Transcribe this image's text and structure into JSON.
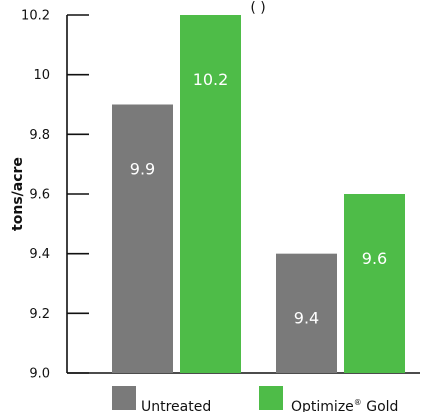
{
  "chart_data": {
    "type": "bar",
    "title_fragment": "(     )",
    "ylabel": "tons/acre",
    "ylim": [
      9.0,
      10.2
    ],
    "yticks": [
      {
        "value": 9.0,
        "label": "9.0"
      },
      {
        "value": 9.2,
        "label": "9.2"
      },
      {
        "value": 9.4,
        "label": "9.4"
      },
      {
        "value": 9.6,
        "label": "9.6"
      },
      {
        "value": 9.8,
        "label": "9.8"
      },
      {
        "value": 10.0,
        "label": "10"
      },
      {
        "value": 10.2,
        "label": "10.2"
      }
    ],
    "categories": [
      "",
      ""
    ],
    "series": [
      {
        "name": "Untreated",
        "color": "#7a7a7a",
        "values": [
          9.9,
          9.4
        ],
        "labels": [
          "9.9",
          "9.4"
        ]
      },
      {
        "name": "Optimize® Gold",
        "legend_main": "Optimize",
        "legend_sup": "®",
        "legend_tail": " Gold",
        "color": "#4ebc48",
        "values": [
          10.2,
          9.6
        ],
        "labels": [
          "10.2",
          "9.6"
        ]
      }
    ],
    "legend_placement": "bottom",
    "grid": false
  }
}
